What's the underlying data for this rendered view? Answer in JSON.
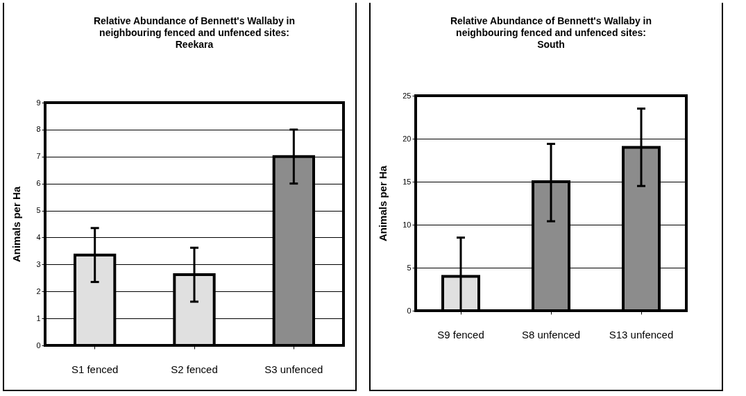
{
  "chart_data": [
    {
      "type": "bar",
      "title": "Relative Abundance of Bennett's Wallaby in neighbouring fenced and unfenced sites: Reekara",
      "ylabel": "Animals per Ha",
      "categories": [
        "S1 fenced",
        "S2 fenced",
        "S3 unfenced"
      ],
      "values": [
        3.35,
        2.62,
        7.0
      ],
      "errors": [
        [
          2.35,
          4.35
        ],
        [
          1.62,
          3.62
        ],
        [
          6.0,
          8.0
        ]
      ],
      "colors": [
        "#e0e0e0",
        "#e0e0e0",
        "#8c8c8c"
      ],
      "ylim": [
        0,
        9
      ],
      "yticks": [
        0,
        1,
        2,
        3,
        4,
        5,
        6,
        7,
        8,
        9
      ],
      "grid": "y"
    },
    {
      "type": "bar",
      "title": "Relative Abundance of Bennett's Wallaby in neighbouring fenced and unfenced sites: South",
      "ylabel": "Animals  per Ha",
      "categories": [
        "S9 fenced",
        "S8 unfenced",
        "S13 unfenced"
      ],
      "values": [
        4.0,
        15.0,
        19.0
      ],
      "errors": [
        [
          0,
          8.5
        ],
        [
          10.4,
          19.4
        ],
        [
          14.5,
          23.5
        ]
      ],
      "colors": [
        "#e0e0e0",
        "#8c8c8c",
        "#8c8c8c"
      ],
      "ylim": [
        0,
        25
      ],
      "yticks": [
        0,
        5,
        10,
        15,
        20,
        25
      ],
      "grid": "y"
    }
  ]
}
